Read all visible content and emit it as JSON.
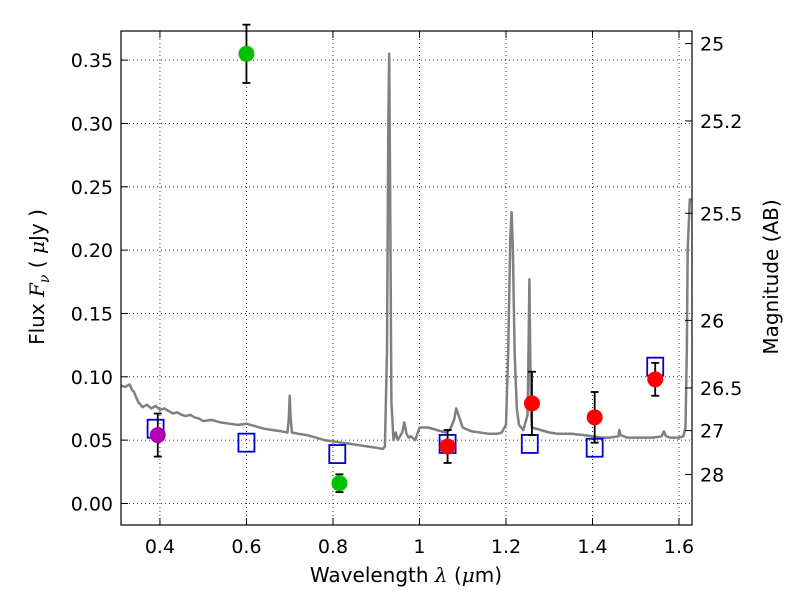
{
  "chart_data": {
    "type": "scatter",
    "xlabel": {
      "prefix": "Wavelength ",
      "symbol": "λ",
      "unit_open": " (",
      "unit_mu": "μ",
      "unit_rest": "m)"
    },
    "ylabel": {
      "prefix": "Flux ",
      "symbol": "F",
      "sub": "ν",
      "unit_open": " ( ",
      "unit_mu": "μ",
      "unit_rest": "Jy )"
    },
    "y2label": "Magnitude (AB)",
    "xlim": [
      0.31,
      1.63
    ],
    "ylim": [
      -0.017,
      0.373
    ],
    "grid": true,
    "x_ticks": [
      0.4,
      0.6,
      0.8,
      1.0,
      1.2,
      1.4,
      1.6
    ],
    "x_tick_labels": [
      "0.4",
      "0.6",
      "0.8",
      "1",
      "1.2",
      "1.4",
      "1.6"
    ],
    "y_ticks": [
      0.0,
      0.05,
      0.1,
      0.15,
      0.2,
      0.25,
      0.3,
      0.35
    ],
    "y_tick_labels": [
      "0.00",
      "0.05",
      "0.10",
      "0.15",
      "0.20",
      "0.25",
      "0.30",
      "0.35"
    ],
    "mag_ticks": [
      25,
      25.2,
      25.5,
      26,
      26.5,
      27,
      28
    ],
    "mag_tick_labels": [
      "25",
      "25.2",
      "25.5",
      "26",
      "26.5",
      "27",
      "28"
    ],
    "colors": {
      "model": "#808080",
      "model_squares": "#0000cc",
      "purple": "#b000b0",
      "green": "#00c000",
      "red": "#ff0000",
      "errorbar": "#000000"
    },
    "model_spectrum": {
      "x": [
        0.31,
        0.32,
        0.33,
        0.335,
        0.34,
        0.345,
        0.35,
        0.36,
        0.37,
        0.38,
        0.39,
        0.4,
        0.41,
        0.42,
        0.43,
        0.44,
        0.45,
        0.46,
        0.47,
        0.48,
        0.49,
        0.5,
        0.52,
        0.54,
        0.56,
        0.58,
        0.6,
        0.62,
        0.64,
        0.66,
        0.68,
        0.695,
        0.698,
        0.7,
        0.702,
        0.705,
        0.72,
        0.74,
        0.76,
        0.78,
        0.8,
        0.82,
        0.84,
        0.86,
        0.88,
        0.9,
        0.915,
        0.92,
        0.925,
        0.928,
        0.93,
        0.932,
        0.935,
        0.94,
        0.945,
        0.95,
        0.96,
        0.965,
        0.97,
        0.975,
        0.98,
        0.99,
        1.0,
        1.02,
        1.04,
        1.06,
        1.07,
        1.08,
        1.085,
        1.09,
        1.1,
        1.12,
        1.14,
        1.16,
        1.18,
        1.19,
        1.2,
        1.205,
        1.21,
        1.213,
        1.216,
        1.22,
        1.225,
        1.23,
        1.24,
        1.25,
        1.252,
        1.254,
        1.256,
        1.258,
        1.26,
        1.28,
        1.3,
        1.32,
        1.35,
        1.38,
        1.4,
        1.42,
        1.44,
        1.46,
        1.462,
        1.465,
        1.48,
        1.5,
        1.52,
        1.54,
        1.56,
        1.565,
        1.57,
        1.58,
        1.6,
        1.61,
        1.615,
        1.618,
        1.62,
        1.625,
        1.63
      ],
      "y": [
        0.093,
        0.092,
        0.094,
        0.09,
        0.088,
        0.084,
        0.08,
        0.076,
        0.078,
        0.075,
        0.077,
        0.074,
        0.075,
        0.073,
        0.071,
        0.072,
        0.07,
        0.069,
        0.07,
        0.068,
        0.067,
        0.065,
        0.066,
        0.064,
        0.063,
        0.062,
        0.063,
        0.061,
        0.059,
        0.058,
        0.057,
        0.056,
        0.067,
        0.085,
        0.068,
        0.056,
        0.055,
        0.054,
        0.052,
        0.05,
        0.049,
        0.048,
        0.047,
        0.046,
        0.045,
        0.044,
        0.043,
        0.045,
        0.12,
        0.3,
        0.355,
        0.25,
        0.08,
        0.05,
        0.056,
        0.05,
        0.056,
        0.064,
        0.055,
        0.052,
        0.053,
        0.05,
        0.06,
        0.06,
        0.058,
        0.056,
        0.058,
        0.066,
        0.075,
        0.07,
        0.06,
        0.057,
        0.056,
        0.055,
        0.055,
        0.056,
        0.062,
        0.12,
        0.21,
        0.23,
        0.2,
        0.12,
        0.075,
        0.062,
        0.058,
        0.07,
        0.12,
        0.177,
        0.12,
        0.07,
        0.06,
        0.058,
        0.056,
        0.055,
        0.055,
        0.054,
        0.053,
        0.052,
        0.052,
        0.053,
        0.058,
        0.054,
        0.052,
        0.052,
        0.052,
        0.052,
        0.053,
        0.057,
        0.053,
        0.052,
        0.052,
        0.053,
        0.06,
        0.12,
        0.2,
        0.24,
        0.24
      ]
    },
    "model_points": [
      {
        "x": 0.39,
        "y": 0.059
      },
      {
        "x": 0.6,
        "y": 0.048
      },
      {
        "x": 0.81,
        "y": 0.039
      },
      {
        "x": 1.065,
        "y": 0.047
      },
      {
        "x": 1.255,
        "y": 0.047
      },
      {
        "x": 1.405,
        "y": 0.044
      },
      {
        "x": 1.545,
        "y": 0.108
      }
    ],
    "observed": [
      {
        "x": 0.395,
        "y": 0.054,
        "err": 0.017,
        "color": "purple"
      },
      {
        "x": 0.6,
        "y": 0.355,
        "err": 0.023,
        "color": "green"
      },
      {
        "x": 0.815,
        "y": 0.016,
        "err": 0.007,
        "color": "green"
      },
      {
        "x": 1.065,
        "y": 0.045,
        "err": 0.013,
        "color": "red"
      },
      {
        "x": 1.26,
        "y": 0.079,
        "err": 0.025,
        "color": "red"
      },
      {
        "x": 1.405,
        "y": 0.068,
        "err": 0.02,
        "color": "red"
      },
      {
        "x": 1.545,
        "y": 0.098,
        "err": 0.013,
        "color": "red"
      }
    ]
  }
}
